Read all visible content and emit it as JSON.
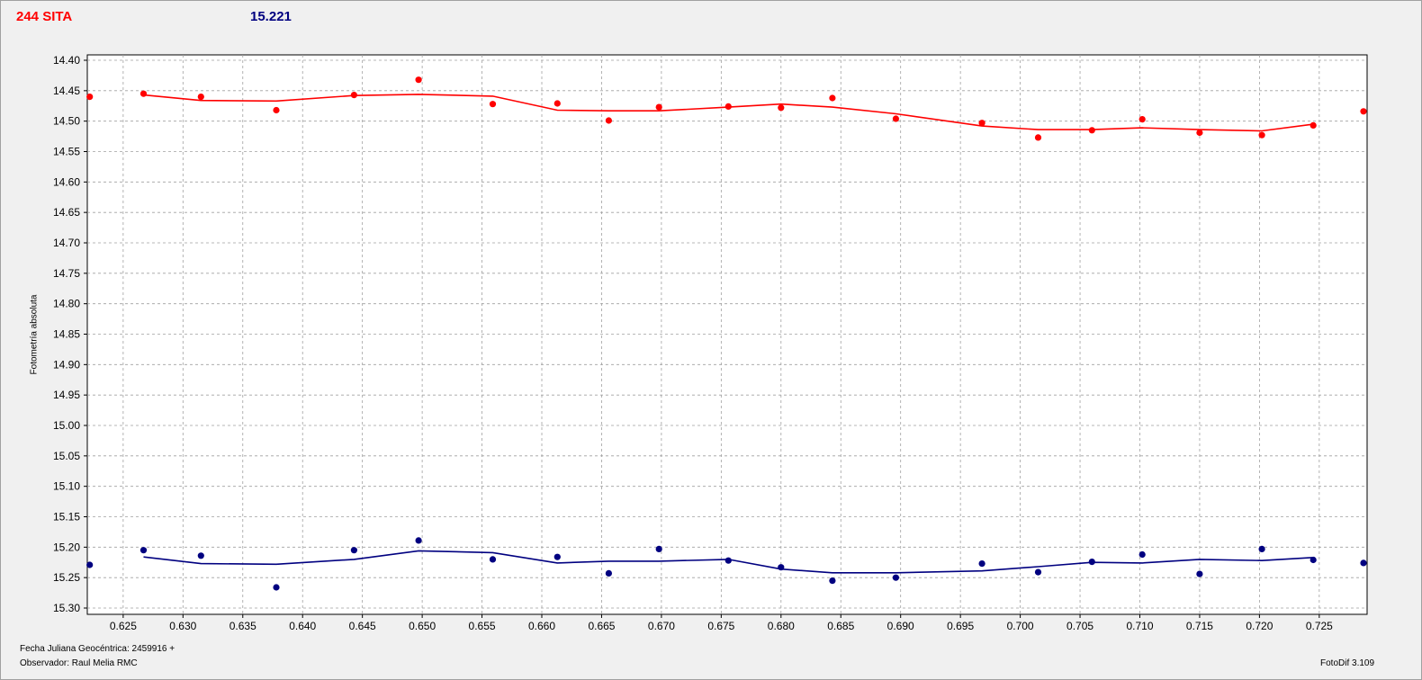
{
  "header": {
    "object_name": "244 SITA",
    "magnitude_value": "15.221"
  },
  "footer": {
    "xaxis_label": "Fecha Juliana Geocéntrica: 2459916 +",
    "observer": "Observador: Raul Melia RMC",
    "software": "FotoDif 3.109"
  },
  "colors": {
    "series_red": "#ff0000",
    "series_blue": "#000080",
    "plot_bg": "#ffffff",
    "grid": "#a0a0a0"
  },
  "chart_data": {
    "type": "scatter",
    "ylabel": "Fotometría absoluta",
    "xlabel": "Fecha Juliana Geocéntrica: 2459916 +",
    "xlim": [
      0.622,
      0.729
    ],
    "ylim": [
      15.3,
      14.4
    ],
    "y_inverted": true,
    "grid": true,
    "x_ticks": [
      "0.625",
      "0.630",
      "0.635",
      "0.640",
      "0.645",
      "0.650",
      "0.655",
      "0.660",
      "0.665",
      "0.670",
      "0.675",
      "0.680",
      "0.685",
      "0.690",
      "0.695",
      "0.700",
      "0.705",
      "0.710",
      "0.715",
      "0.720",
      "0.725"
    ],
    "y_ticks": [
      "14.40",
      "14.45",
      "14.50",
      "14.55",
      "14.60",
      "14.65",
      "14.70",
      "14.75",
      "14.80",
      "14.85",
      "14.90",
      "14.95",
      "15.00",
      "15.05",
      "15.10",
      "15.15",
      "15.20",
      "15.25",
      "15.30"
    ],
    "series": [
      {
        "color": "#ff0000",
        "points": [
          {
            "x": 0.6222,
            "y": 14.46
          },
          {
            "x": 0.6267,
            "y": 14.455
          },
          {
            "x": 0.6315,
            "y": 14.46
          },
          {
            "x": 0.6378,
            "y": 14.482
          },
          {
            "x": 0.6443,
            "y": 14.457
          },
          {
            "x": 0.6497,
            "y": 14.432
          },
          {
            "x": 0.6559,
            "y": 14.472
          },
          {
            "x": 0.6613,
            "y": 14.471
          },
          {
            "x": 0.6656,
            "y": 14.499
          },
          {
            "x": 0.6698,
            "y": 14.477
          },
          {
            "x": 0.6756,
            "y": 14.476
          },
          {
            "x": 0.68,
            "y": 14.478
          },
          {
            "x": 0.6843,
            "y": 14.462
          },
          {
            "x": 0.6896,
            "y": 14.496
          },
          {
            "x": 0.6968,
            "y": 14.503
          },
          {
            "x": 0.7015,
            "y": 14.527
          },
          {
            "x": 0.706,
            "y": 14.515
          },
          {
            "x": 0.7102,
            "y": 14.497
          },
          {
            "x": 0.715,
            "y": 14.519
          },
          {
            "x": 0.7202,
            "y": 14.523
          },
          {
            "x": 0.7245,
            "y": 14.507
          },
          {
            "x": 0.7287,
            "y": 14.484
          }
        ],
        "fit": [
          {
            "x": 0.6267,
            "y": 14.457
          },
          {
            "x": 0.6315,
            "y": 14.466
          },
          {
            "x": 0.6378,
            "y": 14.467
          },
          {
            "x": 0.6443,
            "y": 14.458
          },
          {
            "x": 0.6497,
            "y": 14.456
          },
          {
            "x": 0.6559,
            "y": 14.459
          },
          {
            "x": 0.6613,
            "y": 14.482
          },
          {
            "x": 0.6656,
            "y": 14.483
          },
          {
            "x": 0.6698,
            "y": 14.483
          },
          {
            "x": 0.6756,
            "y": 14.477
          },
          {
            "x": 0.68,
            "y": 14.472
          },
          {
            "x": 0.6843,
            "y": 14.477
          },
          {
            "x": 0.6896,
            "y": 14.488
          },
          {
            "x": 0.6968,
            "y": 14.508
          },
          {
            "x": 0.7015,
            "y": 14.514
          },
          {
            "x": 0.706,
            "y": 14.514
          },
          {
            "x": 0.7102,
            "y": 14.511
          },
          {
            "x": 0.715,
            "y": 14.514
          },
          {
            "x": 0.7202,
            "y": 14.516
          },
          {
            "x": 0.7245,
            "y": 14.505
          }
        ]
      },
      {
        "color": "#000080",
        "points": [
          {
            "x": 0.6222,
            "y": 15.229
          },
          {
            "x": 0.6267,
            "y": 15.205
          },
          {
            "x": 0.6315,
            "y": 15.214
          },
          {
            "x": 0.6378,
            "y": 15.266
          },
          {
            "x": 0.6443,
            "y": 15.205
          },
          {
            "x": 0.6497,
            "y": 15.189
          },
          {
            "x": 0.6559,
            "y": 15.22
          },
          {
            "x": 0.6613,
            "y": 15.216
          },
          {
            "x": 0.6656,
            "y": 15.243
          },
          {
            "x": 0.6698,
            "y": 15.203
          },
          {
            "x": 0.6756,
            "y": 15.222
          },
          {
            "x": 0.68,
            "y": 15.233
          },
          {
            "x": 0.6843,
            "y": 15.255
          },
          {
            "x": 0.6896,
            "y": 15.25
          },
          {
            "x": 0.6968,
            "y": 15.227
          },
          {
            "x": 0.7015,
            "y": 15.241
          },
          {
            "x": 0.706,
            "y": 15.224
          },
          {
            "x": 0.7102,
            "y": 15.212
          },
          {
            "x": 0.715,
            "y": 15.244
          },
          {
            "x": 0.7202,
            "y": 15.203
          },
          {
            "x": 0.7245,
            "y": 15.221
          },
          {
            "x": 0.7287,
            "y": 15.226
          }
        ],
        "fit": [
          {
            "x": 0.6267,
            "y": 15.216
          },
          {
            "x": 0.6315,
            "y": 15.227
          },
          {
            "x": 0.6378,
            "y": 15.228
          },
          {
            "x": 0.6443,
            "y": 15.22
          },
          {
            "x": 0.6497,
            "y": 15.206
          },
          {
            "x": 0.6559,
            "y": 15.209
          },
          {
            "x": 0.6613,
            "y": 15.226
          },
          {
            "x": 0.6656,
            "y": 15.223
          },
          {
            "x": 0.6698,
            "y": 15.223
          },
          {
            "x": 0.6756,
            "y": 15.22
          },
          {
            "x": 0.68,
            "y": 15.236
          },
          {
            "x": 0.6843,
            "y": 15.242
          },
          {
            "x": 0.6896,
            "y": 15.242
          },
          {
            "x": 0.6968,
            "y": 15.239
          },
          {
            "x": 0.7015,
            "y": 15.232
          },
          {
            "x": 0.706,
            "y": 15.225
          },
          {
            "x": 0.7102,
            "y": 15.226
          },
          {
            "x": 0.715,
            "y": 15.22
          },
          {
            "x": 0.7202,
            "y": 15.222
          },
          {
            "x": 0.7245,
            "y": 15.217
          }
        ]
      }
    ]
  }
}
